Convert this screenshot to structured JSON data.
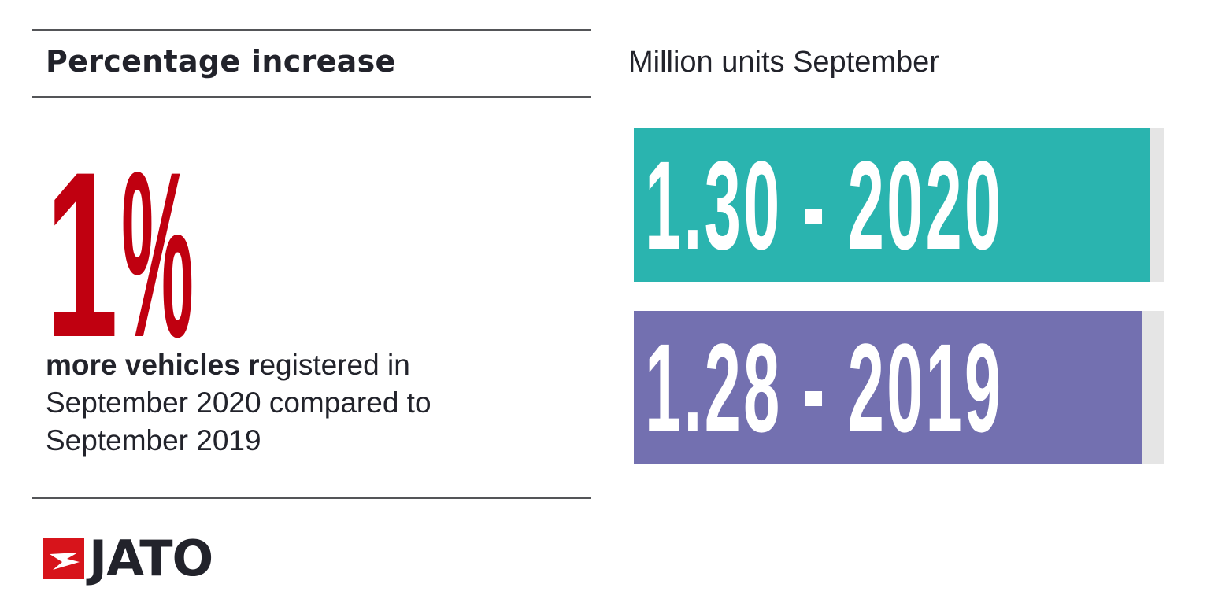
{
  "left_panel": {
    "heading": "Percentage increase",
    "big_number": "1",
    "percent_sign": "%",
    "description_bold": "more vehicles r",
    "description_rest": "egistered in September 2020 compared to September 2019",
    "accent_color": "#c00010"
  },
  "logo": {
    "text": "JATO",
    "icon": "jato-arrow-logo-icon",
    "icon_color": "#d7141b"
  },
  "chart_data": {
    "type": "bar",
    "title": "Million units September",
    "orientation": "horizontal",
    "categories": [
      "2020",
      "2019"
    ],
    "values": [
      1.3,
      1.28
    ],
    "labels": [
      "1.30 - 2020",
      "1.28 - 2019"
    ],
    "colors": [
      "#2ab4af",
      "#7370b0"
    ],
    "track_color": "#e5e5e5",
    "xlim": [
      0,
      1.337
    ]
  }
}
